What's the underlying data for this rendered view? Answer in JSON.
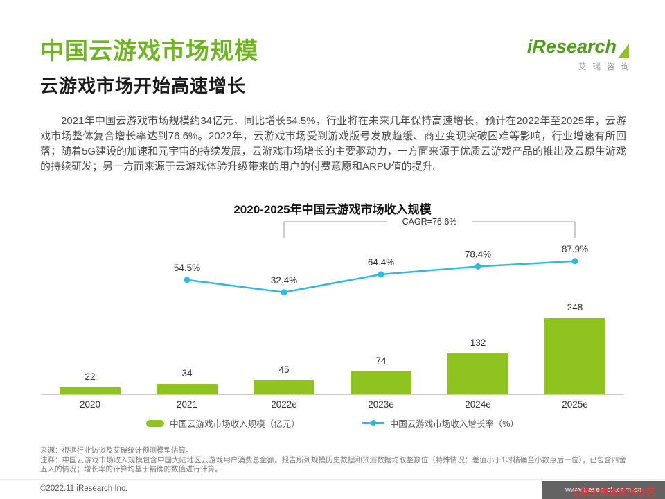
{
  "colors": {
    "green": "#8fc31f",
    "cyan": "#2fb8e0",
    "title_green": "#6fb422"
  },
  "header": {
    "title": "中国云游戏市场规模",
    "subtitle": "云游戏市场开始高速增长",
    "logo_text": "iResearch",
    "logo_sub": "艾瑞咨询"
  },
  "body": {
    "paragraph": "2021年中国云游戏市场规模约34亿元，同比增长54.5%，行业将在未来几年保持高速增长，预计在2022年至2025年，云游戏市场整体复合增长率达到76.6%。2022年，云游戏市场受到游戏版号发放趋缓、商业变现突破困难等影响，行业增速有所回落；随着5G建设的加速和元宇宙的持续发展，云游戏市场增长的主要驱动力，一方面来源于优质云游戏产品的推出及云原生游戏的持续研发；另一方面来源于云游戏体验升级带来的用户的付费意愿和ARPU值的提升。"
  },
  "chart_data": {
    "type": "bar",
    "title": "2020-2025年中国云游戏市场收入规模",
    "categories": [
      "2020",
      "2021",
      "2022e",
      "2023e",
      "2024e",
      "2025e"
    ],
    "series": [
      {
        "name": "中国云游戏市场收入规模（亿元）",
        "type": "bar",
        "color": "#8fc31f",
        "values": [
          22,
          34,
          45,
          74,
          132,
          248
        ]
      },
      {
        "name": "中国云游戏市场收入增长率（%）",
        "type": "line",
        "color": "#2fb8e0",
        "unit": "%",
        "values": [
          null,
          54.5,
          32.4,
          64.4,
          78.4,
          87.9
        ]
      }
    ],
    "annotation": {
      "label": "CAGR=76.6%",
      "from_category": "2022e",
      "to_category": "2025e"
    },
    "xlabel": "",
    "ylabel": "",
    "grid": false,
    "legend_position": "bottom"
  },
  "footnotes": {
    "source": "来源：根据行业访谈及艾瑞统计预测模型估算。",
    "note": "注释：中国云游戏市场收入规模包含中国大陆地区云游戏用户消费总金额。报告所列规模历史数据和预测数据均取整数位（特殊情况：差值小于1时精确至小数点后一位），已包含四舍五入的情况；增长率的计算均基于精确的数值进行计算。"
  },
  "footer": {
    "copyright": "©2022.11 iResearch Inc.",
    "watermark_url": "www.iresearch.com.cn",
    "watermark_overlay": "@稀土掘金技术社区"
  }
}
